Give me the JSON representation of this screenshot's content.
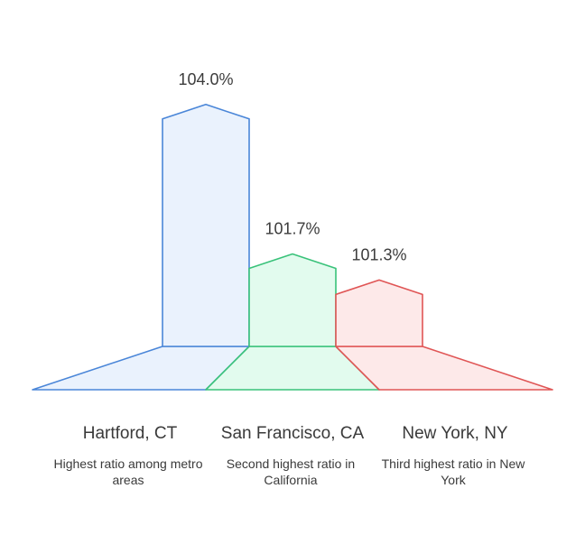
{
  "chart_data": {
    "type": "bar",
    "categories": [
      "Hartford, CT",
      "San Francisco, CA",
      "New York, NY"
    ],
    "values": [
      104.0,
      101.7,
      101.3
    ],
    "value_labels": [
      "104.0%",
      "101.7%",
      "101.3%"
    ],
    "descriptions": [
      "Highest ratio among metro areas",
      "Second highest ratio in California",
      "Third highest ratio in New York"
    ],
    "colors": [
      {
        "stroke": "#4a86d8",
        "fill": "#eaf2fd"
      },
      {
        "stroke": "#39c27a",
        "fill": "#e2fbee"
      },
      {
        "stroke": "#e05555",
        "fill": "#fde9e9"
      }
    ]
  }
}
